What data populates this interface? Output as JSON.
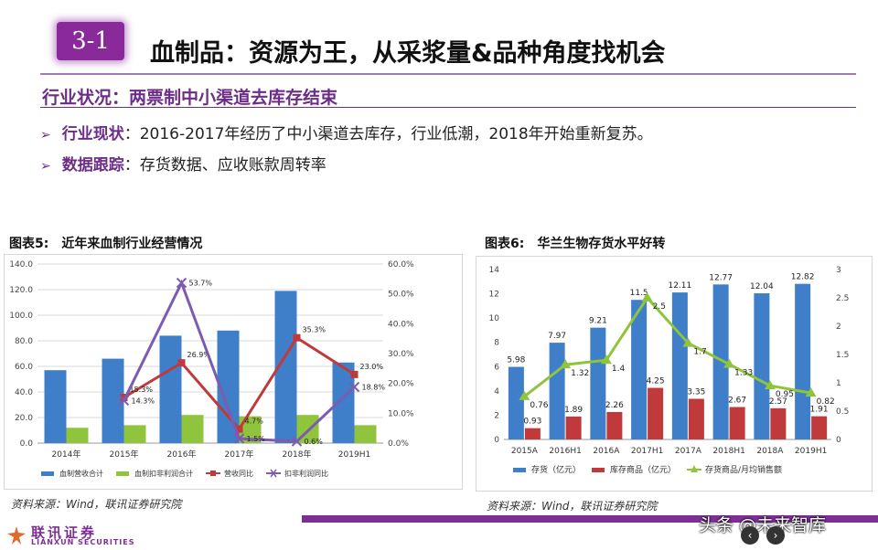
{
  "header": {
    "section_number": "3-1",
    "title": "血制品：资源为王，从采浆量&品种角度找机会",
    "subtitle": "行业状况：两票制中小渠道去库存结束"
  },
  "bullets": [
    {
      "key": "行业现状",
      "sep": "：",
      "text": "2016-2017年经历了中小渠道去库存，行业低潮，2018年开始重新复苏。"
    },
    {
      "key": "数据跟踪",
      "sep": "：",
      "text": "存货数据、应收账款周转率"
    }
  ],
  "figures": [
    {
      "label": "图表5:",
      "caption": "近年来血制行业经营情况",
      "source": "资料来源：Wind，联讯证券研究院"
    },
    {
      "label": "图表6:",
      "caption": "华兰生物存货水平好转",
      "source": "资料来源：Wind，联讯证券研究院"
    }
  ],
  "chart_data": [
    {
      "type": "bar",
      "categories": [
        "2014年",
        "2015年",
        "2016年",
        "2017年",
        "2018年",
        "2019H1"
      ],
      "ylim": [
        0,
        140
      ],
      "y_ticks": [
        "0.0",
        "20.0",
        "40.0",
        "60.0",
        "80.0",
        "100.0",
        "120.0",
        "140.0"
      ],
      "y2lim": [
        0,
        60
      ],
      "y2_ticks": [
        "0.0%",
        "10.0%",
        "20.0%",
        "30.0%",
        "40.0%",
        "50.0%",
        "60.0%"
      ],
      "grid": true,
      "legend_position": "bottom",
      "series": [
        {
          "name": "血制营收合计",
          "kind": "bar",
          "axis": "left",
          "color": "#3f7ec8",
          "values": [
            57,
            66,
            84,
            88,
            119,
            63
          ]
        },
        {
          "name": "血制扣非利润合计",
          "kind": "bar",
          "axis": "left",
          "color": "#8fc43c",
          "values": [
            12,
            14,
            22,
            21,
            22,
            14
          ]
        },
        {
          "name": "营收同比",
          "kind": "line",
          "axis": "right",
          "color": "#c0393b",
          "marker": "square",
          "values": [
            null,
            15.3,
            26.9,
            4.7,
            35.3,
            23.0
          ],
          "labels": [
            "",
            "15.3%",
            "26.9%",
            "4.7%",
            "35.3%",
            "23.0%"
          ]
        },
        {
          "name": "扣非利润同比",
          "kind": "line",
          "axis": "right",
          "color": "#7c5bb0",
          "marker": "x",
          "values": [
            null,
            14.3,
            53.7,
            1.5,
            0.6,
            18.8
          ],
          "labels": [
            "",
            "14.3%",
            "53.7%",
            "1.5%",
            "0.6%",
            "18.8%"
          ]
        }
      ]
    },
    {
      "type": "bar",
      "categories": [
        "2015A",
        "2016H1",
        "2016A",
        "2017H1",
        "2017A",
        "2018H1",
        "2018A",
        "2019H1"
      ],
      "ylim": [
        0,
        14
      ],
      "y_ticks": [
        "0",
        "2",
        "4",
        "6",
        "8",
        "10",
        "12",
        "14"
      ],
      "y2lim": [
        0,
        3
      ],
      "y2_ticks": [
        "0",
        "0.5",
        "1",
        "1.5",
        "2",
        "2.5",
        "3"
      ],
      "grid": false,
      "legend_position": "bottom",
      "series": [
        {
          "name": "存货（亿元）",
          "kind": "bar",
          "axis": "left",
          "color": "#3f7ec8",
          "values": [
            5.98,
            7.97,
            9.21,
            11.5,
            12.11,
            12.77,
            12.04,
            12.82
          ],
          "labels": [
            "5.98",
            "7.97",
            "9.21",
            "11.5",
            "12.11",
            "12.77",
            "12.04",
            "12.82"
          ]
        },
        {
          "name": "库存商品（亿元）",
          "kind": "bar",
          "axis": "left",
          "color": "#c0393b",
          "values": [
            0.93,
            1.89,
            2.26,
            4.25,
            3.35,
            2.67,
            2.57,
            1.91
          ],
          "labels": [
            "0.93",
            "1.89",
            "2.26",
            "4.25",
            "3.35",
            "2.67",
            "2.57",
            "1.91"
          ]
        },
        {
          "name": "存货商品/月均销售额",
          "kind": "line",
          "axis": "right",
          "color": "#8fc43c",
          "marker": "triangle",
          "values": [
            0.76,
            1.32,
            1.4,
            2.5,
            1.7,
            1.33,
            0.95,
            0.82
          ],
          "labels": [
            "0.76",
            "1.32",
            "1.4",
            "2.5",
            "1.7",
            "1.33",
            "0.95",
            "0.82"
          ]
        }
      ]
    }
  ],
  "footer": {
    "logo_cn": "联讯证券",
    "logo_en": "LIANXUN SECURITIES",
    "watermark": "头条 @未来智库",
    "nav_prev": "‹",
    "nav_next": "›"
  },
  "colors": {
    "brand_purple": "#7e2f96",
    "accent_purple": "#6c2d86"
  }
}
